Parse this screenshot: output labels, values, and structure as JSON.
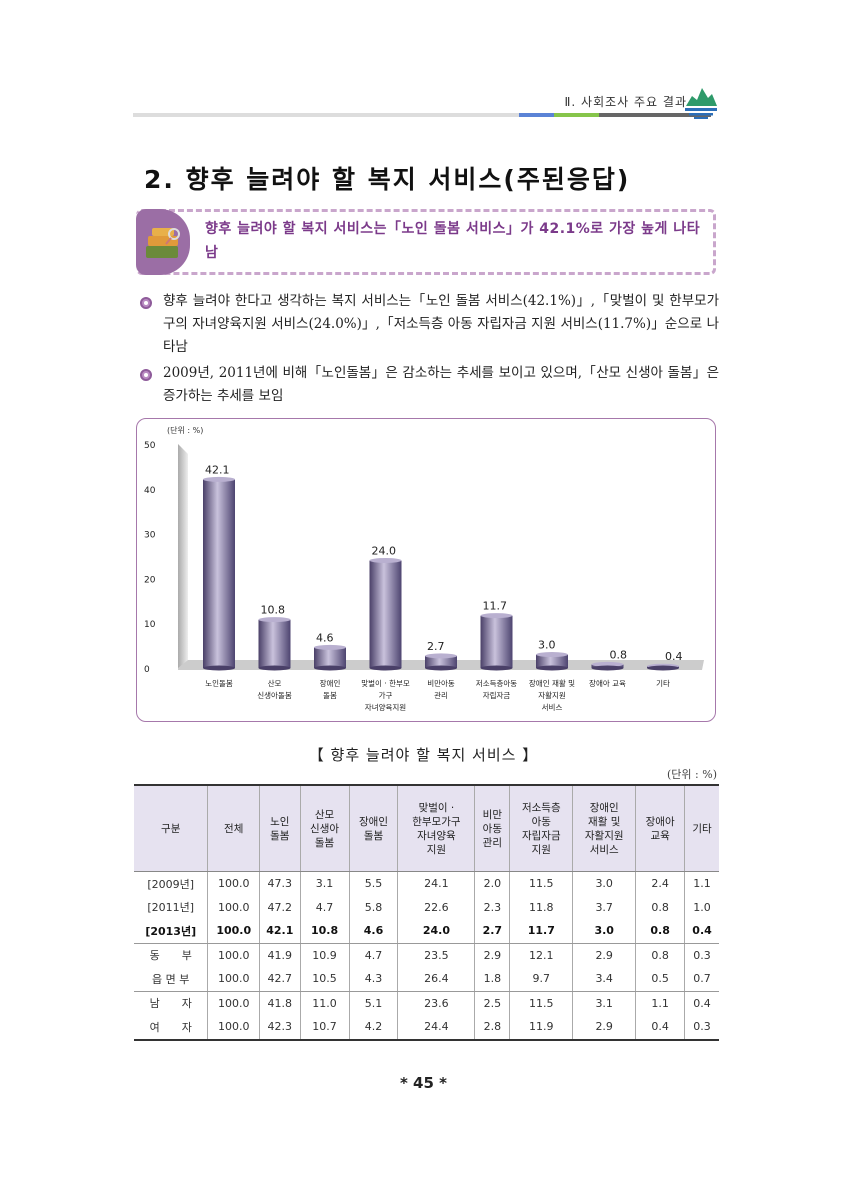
{
  "header": {
    "section": "Ⅱ. 사회조사 주요 결과",
    "accent_colors": [
      "#5b83d6",
      "#86c54a",
      "#666666"
    ]
  },
  "title": "2. 향후 늘려야 할 복지 서비스(주된응답)",
  "summary": "향후 늘려야 할 복지 서비스는「노인 돌봄 서비스」가 42.1%로 가장 높게 나타남",
  "bullets": [
    "향후 늘려야 한다고 생각하는 복지 서비스는「노인 돌봄 서비스(42.1%)」,「맞벌이 및 한부모가구의 자녀양육지원 서비스(24.0%)」,「저소득층 아동 자립자금 지원 서비스(11.7%)」순으로 나타남",
    "2009년, 2011년에 비해「노인돌봄」은 감소하는 추세를 보이고 있으며,「산모 신생아 돌봄」은 증가하는 추세를 보임"
  ],
  "chart_data": {
    "type": "bar",
    "unit_label": "(단위 : %)",
    "categories": [
      "노인돌봄",
      "산모\n신생아돌봄",
      "장애인\n돌봄",
      "맞벌이 · 한부모\n가구\n자녀양육지원",
      "비만아동\n관리",
      "저소득층아동\n자립자금",
      "장애인 재활 및\n자활지원\n서비스",
      "장애아 교육",
      "기타"
    ],
    "values": [
      42.1,
      10.8,
      4.6,
      24.0,
      2.7,
      11.7,
      3.0,
      0.8,
      0.4
    ],
    "data_labels": [
      "42.1",
      "10.8",
      "4.6",
      "24.0",
      "2.7",
      "11.7",
      "3.0",
      "0.8",
      "0.4"
    ],
    "ylim": [
      0,
      50
    ],
    "yticks": [
      "0",
      "10",
      "20",
      "30",
      "40",
      "50"
    ],
    "bar_color": "#6e6390"
  },
  "table": {
    "title": "【 향후 늘려야 할 복지 서비스 】",
    "unit": "(단위 : %)",
    "headers": [
      "구분",
      "전체",
      "노인\n돌봄",
      "산모\n신생아\n돌봄",
      "장애인\n돌봄",
      "맞벌이 ·\n한부모가구\n자녀양육\n지원",
      "비만\n아동\n관리",
      "저소득층\n아동\n자립자금\n지원",
      "장애인\n재활 및\n자활지원\n서비스",
      "장애아\n교육",
      "기타"
    ],
    "rows": [
      [
        "[2009년]",
        "100.0",
        "47.3",
        "3.1",
        "5.5",
        "24.1",
        "2.0",
        "11.5",
        "3.0",
        "2.4",
        "1.1"
      ],
      [
        "[2011년]",
        "100.0",
        "47.2",
        "4.7",
        "5.8",
        "22.6",
        "2.3",
        "11.8",
        "3.7",
        "0.8",
        "1.0"
      ],
      [
        "[2013년]",
        "100.0",
        "42.1",
        "10.8",
        "4.6",
        "24.0",
        "2.7",
        "11.7",
        "3.0",
        "0.8",
        "0.4"
      ],
      [
        "동　　부",
        "100.0",
        "41.9",
        "10.9",
        "4.7",
        "23.5",
        "2.9",
        "12.1",
        "2.9",
        "0.8",
        "0.3"
      ],
      [
        "읍 면 부",
        "100.0",
        "42.7",
        "10.5",
        "4.3",
        "26.4",
        "1.8",
        "9.7",
        "3.4",
        "0.5",
        "0.7"
      ],
      [
        "남　　자",
        "100.0",
        "41.8",
        "11.0",
        "5.1",
        "23.6",
        "2.5",
        "11.5",
        "3.1",
        "1.1",
        "0.4"
      ],
      [
        "여　　자",
        "100.0",
        "42.3",
        "10.7",
        "4.2",
        "24.4",
        "2.8",
        "11.9",
        "2.9",
        "0.4",
        "0.3"
      ]
    ]
  },
  "page_number": "* 45 *"
}
